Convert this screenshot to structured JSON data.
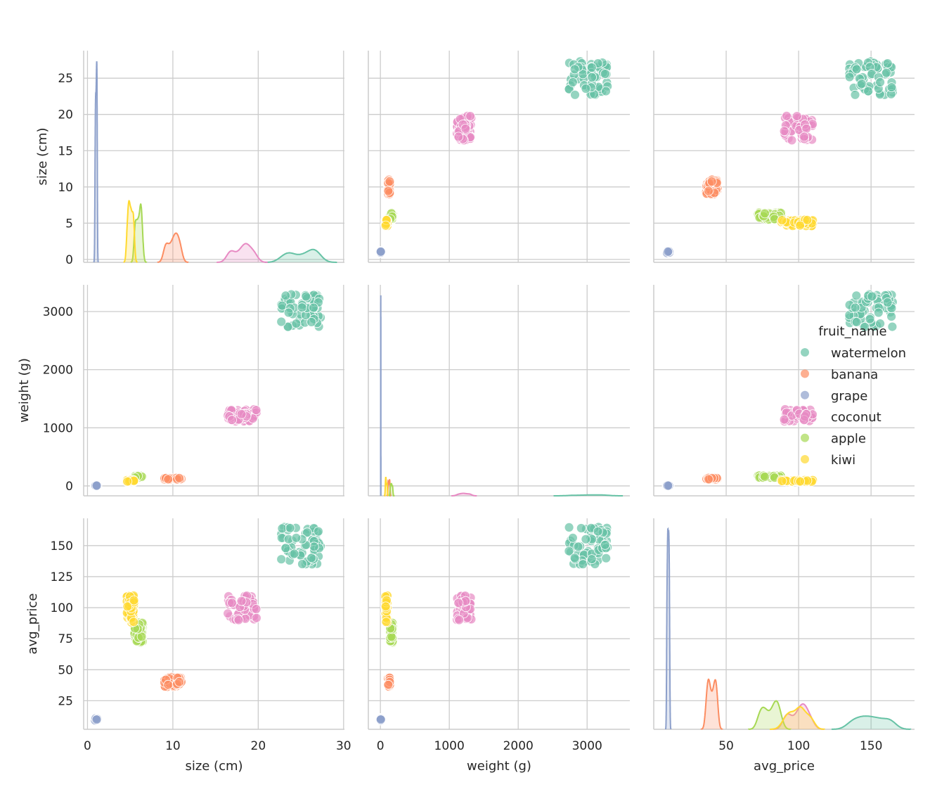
{
  "chart_data": {
    "type": "scatter",
    "subtype": "pairplot",
    "title": "",
    "variables": [
      "size (cm)",
      "weight (g)",
      "avg_price"
    ],
    "diagonal": "kde",
    "grid": true,
    "legend": {
      "title": "fruit_name",
      "placement": "right"
    },
    "axes": {
      "size (cm)": {
        "lim": [
          -0.45,
          30.1
        ],
        "ticks": [
          0,
          5,
          10,
          15,
          20,
          25
        ],
        "xticks": [
          0,
          10,
          20,
          30
        ]
      },
      "weight (g)": {
        "lim": [
          -175,
          3620
        ],
        "ylim": [
          -170,
          3460
        ],
        "ticks": [
          0,
          1000,
          2000,
          3000
        ],
        "xticks": [
          0,
          1000,
          2000,
          3000
        ]
      },
      "avg_price": {
        "lim": [
          0,
          180
        ],
        "ylim": [
          2,
          172
        ],
        "ticks": [
          25,
          50,
          75,
          100,
          125,
          150
        ],
        "xticks": [
          50,
          100,
          150
        ]
      }
    },
    "size_ylim": [
      -0.4,
      28.8
    ],
    "series": [
      {
        "name": "watermelon",
        "color": "#66c2a5",
        "ranges": {
          "size (cm)": [
            22.7,
            27.4
          ],
          "weight (g)": [
            2720,
            3300
          ],
          "avg_price": [
            135,
            165
          ]
        }
      },
      {
        "name": "banana",
        "color": "#fc8d62",
        "ranges": {
          "size (cm)": [
            9.0,
            11.0
          ],
          "weight (g)": [
            110,
            140
          ],
          "avg_price": [
            36,
            44
          ]
        }
      },
      {
        "name": "grape",
        "color": "#8da0cb",
        "ranges": {
          "size (cm)": [
            0.85,
            1.15
          ],
          "weight (g)": [
            4,
            7
          ],
          "avg_price": [
            9,
            11
          ]
        }
      },
      {
        "name": "coconut",
        "color": "#e78ac3",
        "ranges": {
          "size (cm)": [
            16.4,
            19.8
          ],
          "weight (g)": [
            1100,
            1320
          ],
          "avg_price": [
            90,
            110
          ]
        }
      },
      {
        "name": "apple",
        "color": "#a6d854",
        "ranges": {
          "size (cm)": [
            5.5,
            6.5
          ],
          "weight (g)": [
            140,
            180
          ],
          "avg_price": [
            72,
            88
          ]
        }
      },
      {
        "name": "kiwi",
        "color": "#ffd92f",
        "ranges": {
          "size (cm)": [
            4.6,
            5.5
          ],
          "weight (g)": [
            70,
            100
          ],
          "avg_price": [
            88,
            110
          ]
        }
      }
    ]
  }
}
